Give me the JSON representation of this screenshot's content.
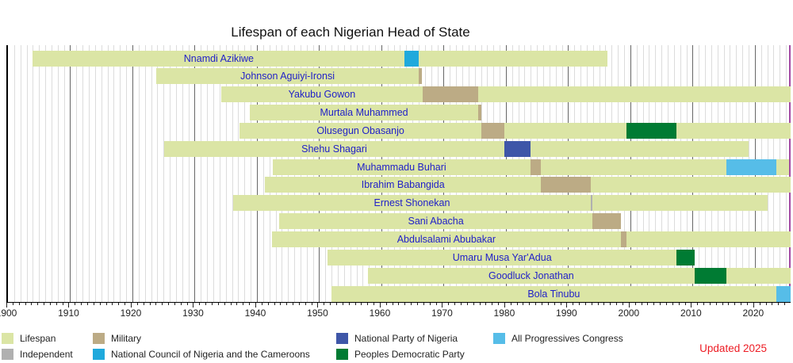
{
  "title": "Lifespan of each Nigerian Head of State",
  "updated_note": "Updated 2025",
  "colors": {
    "lifespan": "#dbe5a5",
    "independent": "#b0b0b0",
    "military": "#bcab85",
    "ncnc": "#1fa9dc",
    "npn": "#3e56a8",
    "pdp": "#007b33",
    "apc": "#56bde8",
    "now_line": "#a349a4",
    "name_text": "#2121c8",
    "updated_text": "#ed1c24"
  },
  "legend": {
    "columns": [
      [
        {
          "color": "lifespan",
          "label": "Lifespan"
        },
        {
          "color": "independent",
          "label": "Independent"
        }
      ],
      [
        {
          "color": "military",
          "label": "Military"
        },
        {
          "color": "ncnc",
          "label": "National Council of Nigeria and the Cameroons"
        }
      ],
      [
        {
          "color": "npn",
          "label": "National Party of Nigeria"
        },
        {
          "color": "pdp",
          "label": "Peoples Democratic Party"
        }
      ],
      [
        {
          "color": "apc",
          "label": "All Progressives Congress"
        }
      ]
    ]
  },
  "chart_data": {
    "type": "timeline_bar",
    "title": "Lifespan of each Nigerian Head of State",
    "axis": {
      "min": 1900,
      "max": 2025.75,
      "minor_tick_interval": 1,
      "label_interval": 10,
      "tick_labels": [
        "1900",
        "1910",
        "1920",
        "1930",
        "1940",
        "1950",
        "1960",
        "1970",
        "1980",
        "1990",
        "2000",
        "2010",
        "2020"
      ]
    },
    "now": 2025.75,
    "people": [
      {
        "name": "Nnamdi Azikiwe",
        "born": 1904.0,
        "died": 1996.36,
        "terms": [
          {
            "party": "ncnc",
            "start": 1963.75,
            "end": 1966.04
          }
        ]
      },
      {
        "name": "Johnson Aguiyi-Ironsi",
        "born": 1923.8,
        "died": 1966.57,
        "terms": [
          {
            "party": "military",
            "start": 1966.04,
            "end": 1966.57
          }
        ]
      },
      {
        "name": "Yakubu Gowon",
        "born": 1934.3,
        "died": null,
        "terms": [
          {
            "party": "military",
            "start": 1966.58,
            "end": 1975.57
          }
        ]
      },
      {
        "name": "Murtala Muhammed",
        "born": 1938.85,
        "died": 1976.12,
        "terms": [
          {
            "party": "military",
            "start": 1975.57,
            "end": 1976.12
          }
        ]
      },
      {
        "name": "Olusegun Obasanjo",
        "born": 1937.17,
        "died": null,
        "terms": [
          {
            "party": "military",
            "start": 1976.12,
            "end": 1979.75
          },
          {
            "party": "pdp",
            "start": 1999.4,
            "end": 2007.4
          }
        ]
      },
      {
        "name": "Shehu Shagari",
        "born": 1925.1,
        "died": 2018.99,
        "terms": [
          {
            "party": "npn",
            "start": 1979.75,
            "end": 1983.99
          }
        ]
      },
      {
        "name": "Muhammadu Buhari",
        "born": 1942.5,
        "died": 2025.53,
        "terms": [
          {
            "party": "military",
            "start": 1983.99,
            "end": 1985.65
          },
          {
            "party": "apc",
            "start": 2015.4,
            "end": 2023.4
          }
        ]
      },
      {
        "name": "Ibrahim Babangida",
        "born": 1941.3,
        "died": null,
        "terms": [
          {
            "party": "military",
            "start": 1985.65,
            "end": 1993.63
          }
        ]
      },
      {
        "name": "Ernest Shonekan",
        "born": 1936.2,
        "died": 2022.03,
        "terms": [
          {
            "party": "independent",
            "start": 1993.63,
            "end": 1993.9
          }
        ]
      },
      {
        "name": "Sani Abacha",
        "born": 1943.6,
        "died": 1998.44,
        "terms": [
          {
            "party": "military",
            "start": 1993.9,
            "end": 1998.44
          }
        ]
      },
      {
        "name": "Abdulsalami Abubakar",
        "born": 1942.45,
        "died": null,
        "terms": [
          {
            "party": "military",
            "start": 1998.44,
            "end": 1999.4
          }
        ]
      },
      {
        "name": "Umaru Musa Yar'Adua",
        "born": 1951.4,
        "died": 2010.34,
        "terms": [
          {
            "party": "pdp",
            "start": 2007.4,
            "end": 2010.34
          }
        ]
      },
      {
        "name": "Goodluck Jonathan",
        "born": 1957.8,
        "died": null,
        "terms": [
          {
            "party": "pdp",
            "start": 2010.35,
            "end": 2015.4
          }
        ]
      },
      {
        "name": "Bola Tinubu",
        "born": 1952.0,
        "died": null,
        "terms": [
          {
            "party": "apc",
            "start": 2023.4,
            "end": null
          }
        ]
      }
    ],
    "legend_position": "bottom",
    "grid": "vertical-yearly"
  }
}
